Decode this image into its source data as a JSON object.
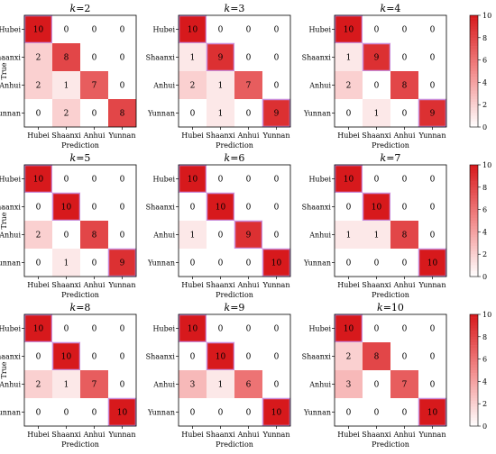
{
  "figure": {
    "colormap": {
      "low": "#ffffff",
      "mid": "#f28a8a",
      "high": "#d7191c",
      "outline": "#c98bd9"
    },
    "colorbar_ticks": [
      "0",
      "2",
      "4",
      "6",
      "8",
      "10"
    ],
    "classes": [
      "Hubei",
      "Shaanxi",
      "Anhui",
      "Yunnan"
    ],
    "axis_x_label": "Prediction",
    "axis_y_label": "True"
  },
  "chart_data": [
    {
      "type": "heatmap",
      "title_k": "k",
      "title_eq": "=2",
      "matrix": [
        [
          10,
          0,
          0,
          0
        ],
        [
          2,
          8,
          0,
          0
        ],
        [
          2,
          1,
          7,
          0
        ],
        [
          0,
          2,
          0,
          8
        ]
      ]
    },
    {
      "type": "heatmap",
      "title_k": "k",
      "title_eq": "=3",
      "matrix": [
        [
          10,
          0,
          0,
          0
        ],
        [
          1,
          9,
          0,
          0
        ],
        [
          2,
          1,
          7,
          0
        ],
        [
          0,
          1,
          0,
          9
        ]
      ]
    },
    {
      "type": "heatmap",
      "title_k": "k",
      "title_eq": "=4",
      "matrix": [
        [
          10,
          0,
          0,
          0
        ],
        [
          1,
          9,
          0,
          0
        ],
        [
          2,
          0,
          8,
          0
        ],
        [
          0,
          1,
          0,
          9
        ]
      ]
    },
    {
      "type": "heatmap",
      "title_k": "k",
      "title_eq": "=5",
      "matrix": [
        [
          10,
          0,
          0,
          0
        ],
        [
          0,
          10,
          0,
          0
        ],
        [
          2,
          0,
          8,
          0
        ],
        [
          0,
          1,
          0,
          9
        ]
      ]
    },
    {
      "type": "heatmap",
      "title_k": "k",
      "title_eq": "=6",
      "matrix": [
        [
          10,
          0,
          0,
          0
        ],
        [
          0,
          10,
          0,
          0
        ],
        [
          1,
          0,
          9,
          0
        ],
        [
          0,
          0,
          0,
          10
        ]
      ]
    },
    {
      "type": "heatmap",
      "title_k": "k",
      "title_eq": "=7",
      "matrix": [
        [
          10,
          0,
          0,
          0
        ],
        [
          0,
          10,
          0,
          0
        ],
        [
          1,
          1,
          8,
          0
        ],
        [
          0,
          0,
          0,
          10
        ]
      ]
    },
    {
      "type": "heatmap",
      "title_k": "k",
      "title_eq": "=8",
      "matrix": [
        [
          10,
          0,
          0,
          0
        ],
        [
          0,
          10,
          0,
          0
        ],
        [
          2,
          1,
          7,
          0
        ],
        [
          0,
          0,
          0,
          10
        ]
      ]
    },
    {
      "type": "heatmap",
      "title_k": "k",
      "title_eq": "=9",
      "matrix": [
        [
          10,
          0,
          0,
          0
        ],
        [
          0,
          10,
          0,
          0
        ],
        [
          3,
          1,
          6,
          0
        ],
        [
          0,
          0,
          0,
          10
        ]
      ]
    },
    {
      "type": "heatmap",
      "title_k": "k",
      "title_eq": "=10",
      "matrix": [
        [
          10,
          0,
          0,
          0
        ],
        [
          2,
          8,
          0,
          0
        ],
        [
          3,
          0,
          7,
          0
        ],
        [
          0,
          0,
          0,
          10
        ]
      ]
    }
  ]
}
